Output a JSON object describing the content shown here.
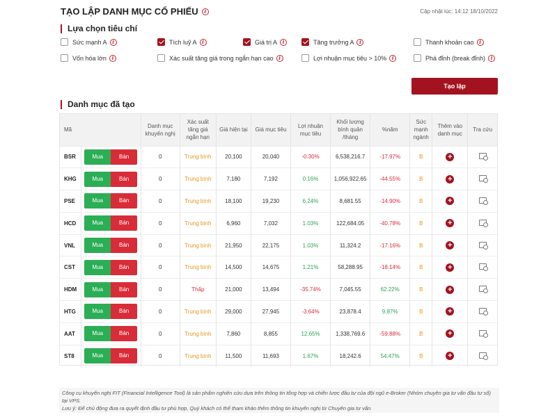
{
  "header": {
    "title": "TẠO LẬP DANH MỤC CỔ PHIẾU",
    "updated": "Cập nhật lúc: 14:12 18/10/2022"
  },
  "criteria": {
    "heading": "Lựa chọn tiêu chí",
    "items": [
      {
        "label": "Sức mạnh A",
        "checked": false
      },
      {
        "label": "Tích luỹ A",
        "checked": true
      },
      {
        "label": "Giá trị A",
        "checked": true
      },
      {
        "label": "Tăng trưởng A",
        "checked": true
      },
      {
        "label": "Thanh khoản cao",
        "checked": false
      },
      {
        "label": "Vốn hóa lớn",
        "checked": false
      },
      {
        "label": "Xác suất tăng giá trong ngắn hạn cao",
        "checked": false
      },
      {
        "label": "Lợi nhuận mục tiêu > 10%",
        "checked": false
      },
      {
        "label": "Phá đỉnh (break đỉnh)",
        "checked": false
      }
    ],
    "create_label": "Tạo lập"
  },
  "portfolio": {
    "heading": "Danh mục đã tạo",
    "columns": [
      "Mã",
      "Danh mục khuyến nghị",
      "Xác suất tăng giá ngắn hạn",
      "Giá hiện tại",
      "Giá mục tiêu",
      "Lợi nhuận mục tiêu",
      "Khối lượng bình quân /tháng",
      "%năm",
      "Sức mạnh ngành",
      "Thêm vào danh mục",
      "Tra cứu"
    ],
    "buy_label": "Mua",
    "sell_label": "Bán",
    "rows": [
      {
        "code": "BSR",
        "rec": "0",
        "prob": "Trung bình",
        "price": "20,100",
        "target": "20,040",
        "profit": "-0.30%",
        "volume": "6,538,216.7",
        "year": "-17.97%",
        "strength": "B"
      },
      {
        "code": "KHG",
        "rec": "0",
        "prob": "Trung bình",
        "price": "7,180",
        "target": "7,192",
        "profit": "0.16%",
        "volume": "1,056,922.65",
        "year": "-44.55%",
        "strength": "B"
      },
      {
        "code": "PSE",
        "rec": "0",
        "prob": "Trung bình",
        "price": "18,100",
        "target": "19,230",
        "profit": "6.24%",
        "volume": "8,681.55",
        "year": "-14.90%",
        "strength": "B"
      },
      {
        "code": "HCD",
        "rec": "0",
        "prob": "Trung bình",
        "price": "6,960",
        "target": "7,032",
        "profit": "1.03%",
        "volume": "122,684.05",
        "year": "-40.78%",
        "strength": "B"
      },
      {
        "code": "VNL",
        "rec": "0",
        "prob": "Trung bình",
        "price": "21,950",
        "target": "22,175",
        "profit": "1.03%",
        "volume": "11,324.2",
        "year": "-17.16%",
        "strength": "B"
      },
      {
        "code": "CST",
        "rec": "0",
        "prob": "Trung bình",
        "price": "14,500",
        "target": "14,675",
        "profit": "1.21%",
        "volume": "58,288.95",
        "year": "-18.14%",
        "strength": "B"
      },
      {
        "code": "HDM",
        "rec": "0",
        "prob": "Thấp",
        "price": "21,000",
        "target": "13,494",
        "profit": "-35.74%",
        "volume": "7,045.55",
        "year": "62.22%",
        "strength": "B"
      },
      {
        "code": "HTG",
        "rec": "0",
        "prob": "Trung bình",
        "price": "29,000",
        "target": "27,945",
        "profit": "-3.64%",
        "volume": "23,878.4",
        "year": "9.87%",
        "strength": "B"
      },
      {
        "code": "AAT",
        "rec": "0",
        "prob": "Trung bình",
        "price": "7,860",
        "target": "8,855",
        "profit": "12.65%",
        "volume": "1,338,769.6",
        "year": "-59.88%",
        "strength": "B"
      },
      {
        "code": "ST8",
        "rec": "0",
        "prob": "Trung bình",
        "price": "11,500",
        "target": "11,693",
        "profit": "1.67%",
        "volume": "18,242.6",
        "year": "54.47%",
        "strength": "B"
      }
    ]
  },
  "footer": {
    "line1": "Công cụ khuyến nghị FIT (Financial Intelligence Tool) là sản phẩm nghiên cứu dựa trên thông tin tổng hợp và chiến lược đầu tư của đội ngũ e-Broker (Nhóm chuyên gia tư vấn đầu tư số) tại VPS.",
    "line2": "Lưu ý: Để chủ động đưa ra quyết định đầu tư phù hợp, Quý khách có thể tham khảo thêm thông tin khuyến nghị từ Chuyên gia tư vấn."
  },
  "colors": {
    "brand": "#a3131f",
    "buy": "#2bae55",
    "sell": "#d82c38",
    "medium": "#e8961a",
    "positive": "#2aa553",
    "negative": "#d82c38"
  }
}
